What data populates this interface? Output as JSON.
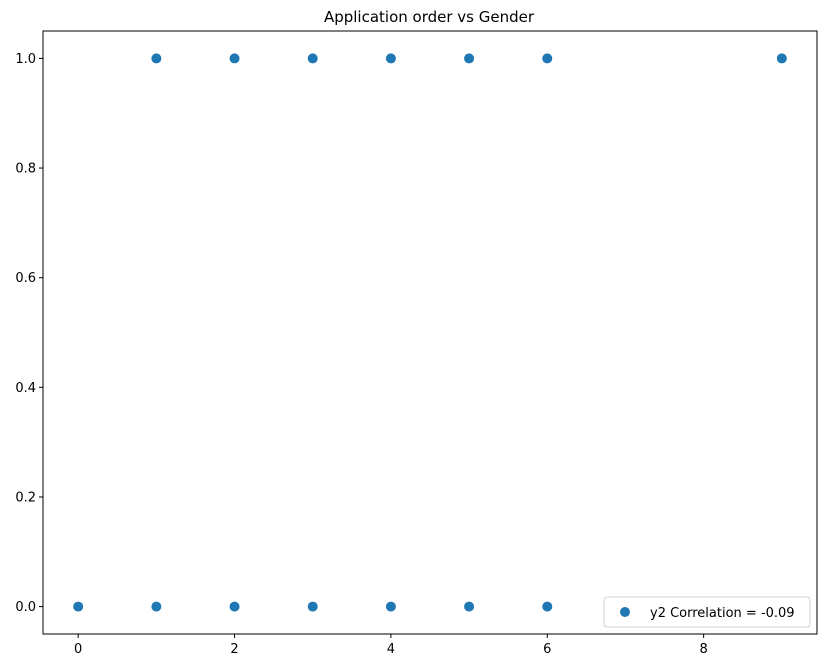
{
  "chart_data": {
    "type": "scatter",
    "title": "Application order vs Gender",
    "xlabel": "",
    "ylabel": "",
    "xlim": [
      -0.45,
      9.45
    ],
    "ylim": [
      -0.05,
      1.05
    ],
    "xticks": [
      0,
      2,
      4,
      6,
      8
    ],
    "yticks": [
      0.0,
      0.2,
      0.4,
      0.6,
      0.8,
      1.0
    ],
    "xtick_labels": [
      "0",
      "2",
      "4",
      "6",
      "8"
    ],
    "ytick_labels": [
      "0.0",
      "0.2",
      "0.4",
      "0.6",
      "0.8",
      "1.0"
    ],
    "grid": false,
    "legend_position": "lower-right",
    "series": [
      {
        "name": "y2 Correlation = -0.09",
        "color": "#1f77b4",
        "points": [
          {
            "x": 0,
            "y": 0
          },
          {
            "x": 1,
            "y": 0
          },
          {
            "x": 2,
            "y": 0
          },
          {
            "x": 3,
            "y": 0
          },
          {
            "x": 4,
            "y": 0
          },
          {
            "x": 5,
            "y": 0
          },
          {
            "x": 6,
            "y": 0
          },
          {
            "x": 1,
            "y": 1
          },
          {
            "x": 2,
            "y": 1
          },
          {
            "x": 3,
            "y": 1
          },
          {
            "x": 4,
            "y": 1
          },
          {
            "x": 5,
            "y": 1
          },
          {
            "x": 6,
            "y": 1
          },
          {
            "x": 9,
            "y": 1
          }
        ]
      }
    ]
  }
}
